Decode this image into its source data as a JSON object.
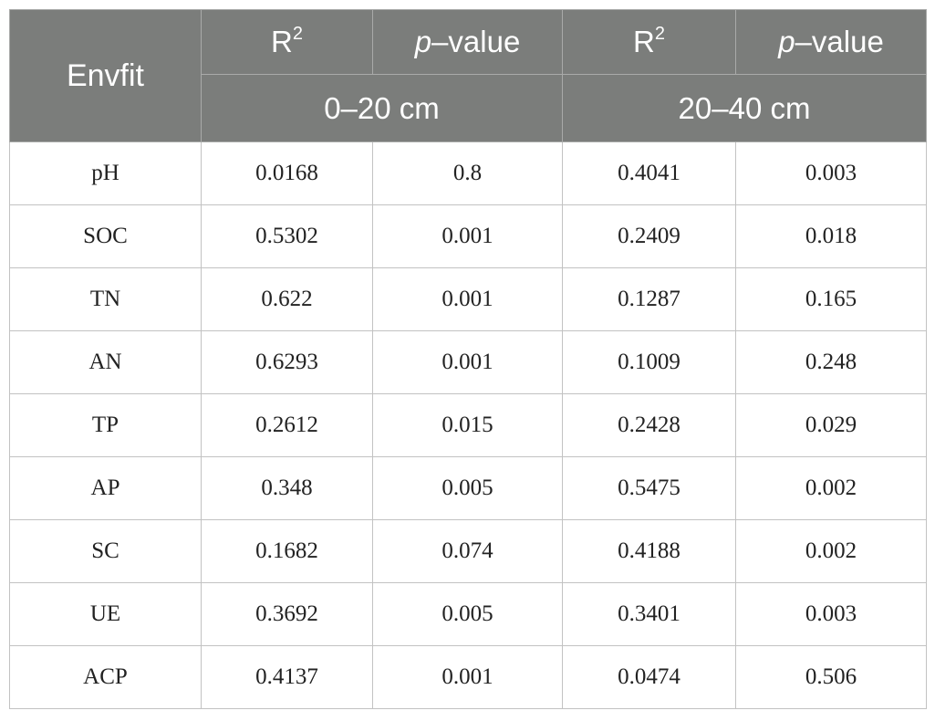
{
  "header": {
    "row_label": "Envfit",
    "r2_base": "R",
    "r2_sup": "2",
    "p_italic": "p",
    "p_rest": "–value",
    "depth_1": "0–20 cm",
    "depth_2": "20–40 cm"
  },
  "rows": [
    {
      "name": "pH",
      "r2_a": "0.0168",
      "p_a": "0.8",
      "r2_b": "0.4041",
      "p_b": "0.003"
    },
    {
      "name": "SOC",
      "r2_a": "0.5302",
      "p_a": "0.001",
      "r2_b": "0.2409",
      "p_b": "0.018"
    },
    {
      "name": "TN",
      "r2_a": "0.622",
      "p_a": "0.001",
      "r2_b": "0.1287",
      "p_b": "0.165"
    },
    {
      "name": "AN",
      "r2_a": "0.6293",
      "p_a": "0.001",
      "r2_b": "0.1009",
      "p_b": "0.248"
    },
    {
      "name": "TP",
      "r2_a": "0.2612",
      "p_a": "0.015",
      "r2_b": "0.2428",
      "p_b": "0.029"
    },
    {
      "name": "AP",
      "r2_a": "0.348",
      "p_a": "0.005",
      "r2_b": "0.5475",
      "p_b": "0.002"
    },
    {
      "name": "SC",
      "r2_a": "0.1682",
      "p_a": "0.074",
      "r2_b": "0.4188",
      "p_b": "0.002"
    },
    {
      "name": "UE",
      "r2_a": "0.3692",
      "p_a": "0.005",
      "r2_b": "0.3401",
      "p_b": "0.003"
    },
    {
      "name": "ACP",
      "r2_a": "0.4137",
      "p_a": "0.001",
      "r2_b": "0.0474",
      "p_b": "0.506"
    }
  ]
}
